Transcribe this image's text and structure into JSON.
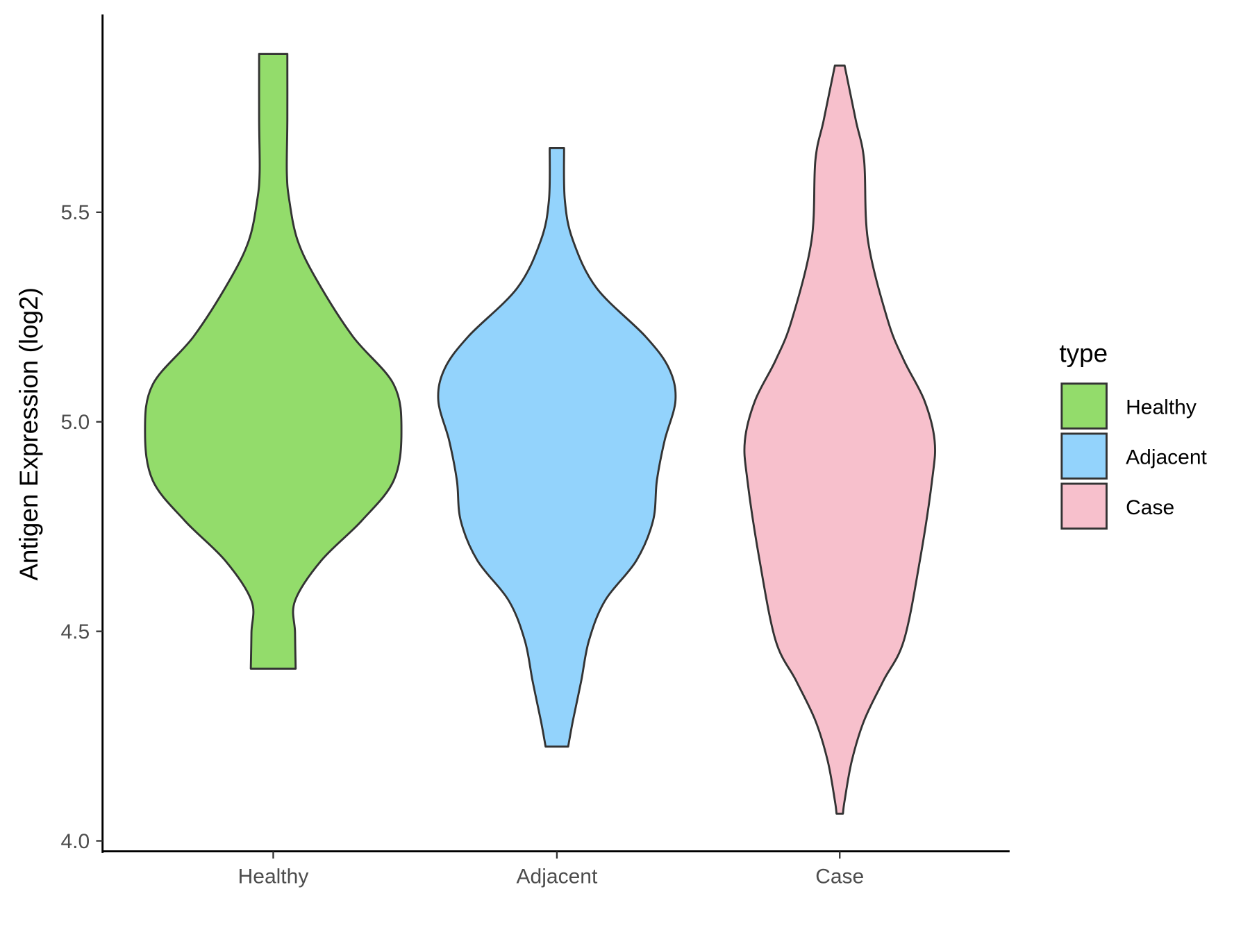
{
  "chart_data": {
    "type": "violin",
    "title": "",
    "xlabel": "",
    "ylabel": "Antigen Expression (log2)",
    "ylim": [
      3.98,
      5.97
    ],
    "yticks": [
      "4.0",
      "4.5",
      "5.0",
      "5.5"
    ],
    "ytick_values": [
      4.0,
      4.5,
      5.0,
      5.5
    ],
    "categories": [
      "Healthy",
      "Adjacent",
      "Case"
    ],
    "legend": {
      "title": "type",
      "entries": [
        "Healthy",
        "Adjacent",
        "Case"
      ],
      "placement": "right"
    },
    "series": [
      {
        "name": "Healthy",
        "color": "#93DC6B",
        "profile": [
          [
            5.878,
            0.11
          ],
          [
            5.72,
            0.11
          ],
          [
            5.596,
            0.106
          ],
          [
            5.529,
            0.125
          ],
          [
            5.433,
            0.19
          ],
          [
            5.338,
            0.34
          ],
          [
            5.204,
            0.62
          ],
          [
            5.089,
            0.94
          ],
          [
            4.975,
            1.0
          ],
          [
            4.86,
            0.94
          ],
          [
            4.764,
            0.69
          ],
          [
            4.669,
            0.375
          ],
          [
            4.573,
            0.17
          ],
          [
            4.497,
            0.17
          ],
          [
            4.411,
            0.175
          ]
        ]
      },
      {
        "name": "Adjacent",
        "color": "#93D3FC",
        "profile": [
          [
            5.653,
            0.056
          ],
          [
            5.529,
            0.062
          ],
          [
            5.433,
            0.125
          ],
          [
            5.319,
            0.31
          ],
          [
            5.204,
            0.69
          ],
          [
            5.127,
            0.875
          ],
          [
            5.051,
            0.925
          ],
          [
            4.955,
            0.84
          ],
          [
            4.86,
            0.78
          ],
          [
            4.764,
            0.75
          ],
          [
            4.669,
            0.62
          ],
          [
            4.573,
            0.375
          ],
          [
            4.478,
            0.25
          ],
          [
            4.382,
            0.19
          ],
          [
            4.287,
            0.125
          ],
          [
            4.225,
            0.088
          ]
        ]
      },
      {
        "name": "Case",
        "color": "#F7C0CC",
        "profile": [
          [
            5.85,
            0.038
          ],
          [
            5.72,
            0.125
          ],
          [
            5.624,
            0.19
          ],
          [
            5.433,
            0.22
          ],
          [
            5.242,
            0.375
          ],
          [
            5.147,
            0.5
          ],
          [
            5.051,
            0.66
          ],
          [
            4.955,
            0.74
          ],
          [
            4.86,
            0.72
          ],
          [
            4.669,
            0.625
          ],
          [
            4.478,
            0.5
          ],
          [
            4.382,
            0.34
          ],
          [
            4.287,
            0.19
          ],
          [
            4.191,
            0.094
          ],
          [
            4.096,
            0.038
          ],
          [
            4.065,
            0.025
          ]
        ]
      }
    ]
  }
}
